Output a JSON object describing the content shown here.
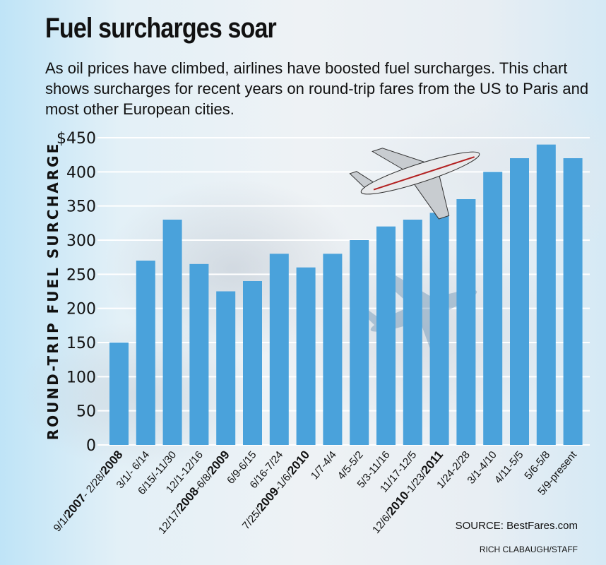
{
  "header": {
    "title": "Fuel surcharges soar",
    "subtitle": "As oil prices have climbed, airlines have boosted fuel surcharges. This chart shows surcharges for recent years on round-trip fares from the US to Paris and most other European cities."
  },
  "footer": {
    "source": "SOURCE: BestFares.com",
    "credit": "RICH CLABAUGH/STAFF"
  },
  "colors": {
    "bar": "#4aa2db",
    "grid": "#ffffff",
    "text": "#111111"
  },
  "chart_data": {
    "type": "bar",
    "title": "Fuel surcharges soar",
    "ylabel": "ROUND-TRIP FUEL SURCHARGE",
    "xlabel": "",
    "ylim": [
      0,
      450
    ],
    "yticks": [
      0,
      50,
      100,
      150,
      200,
      250,
      300,
      350,
      400,
      450
    ],
    "ytick_labels": [
      "0",
      "50",
      "100",
      "150",
      "200",
      "250",
      "300",
      "350",
      "400",
      "$450"
    ],
    "grid": true,
    "categories": [
      "9/1/2007- 2/28/2008",
      "3/1/- 6/14",
      "6/15/-11/30",
      "12/1-12/16",
      "12/17/2008-6/8/2009",
      "6/9-6/15",
      "6/16-7/24",
      "7/25/2009-1/6/2010",
      "1/7-4/4",
      "4/5-5/2",
      "5/3-11/16",
      "11/17-12/5",
      "12/6/2010-1/23/2011",
      "1/24-2/28",
      "3/1-4/10",
      "4/11-5/5",
      "5/6-5/8",
      "5/9-present"
    ],
    "values": [
      150,
      270,
      330,
      265,
      225,
      240,
      280,
      260,
      280,
      300,
      320,
      330,
      340,
      360,
      400,
      420,
      440,
      420
    ]
  }
}
